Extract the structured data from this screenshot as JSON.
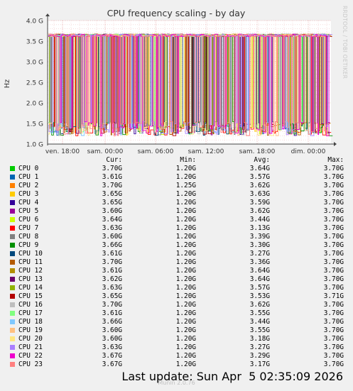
{
  "chart_data": {
    "type": "line",
    "title": "CPU frequency scaling - by day",
    "ylabel": "Hz",
    "watermark": "RRDTOOL / TOBI OETIKER",
    "ylim": [
      1.0,
      4.0
    ],
    "y_ticks": [
      "1.0 G",
      "1.5 G",
      "2.0 G",
      "2.5 G",
      "3.0 G",
      "3.5 G",
      "4.0 G"
    ],
    "x_ticks": [
      "ven. 18:00",
      "sam. 00:00",
      "sam. 06:00",
      "sam. 12:00",
      "sam. 18:00",
      "dim. 00:00"
    ],
    "grid": true,
    "legend_headers": {
      "cur": "Cur:",
      "min": "Min:",
      "avg": "Avg:",
      "max": "Max:"
    },
    "series": [
      {
        "name": "CPU 0",
        "color": "#00cc00",
        "cur": "3.70G",
        "min": "1.20G",
        "avg": "3.64G",
        "max": "3.70G"
      },
      {
        "name": "CPU 1",
        "color": "#0066b3",
        "cur": "3.61G",
        "min": "1.20G",
        "avg": "3.57G",
        "max": "3.70G"
      },
      {
        "name": "CPU 2",
        "color": "#ff8000",
        "cur": "3.70G",
        "min": "1.25G",
        "avg": "3.62G",
        "max": "3.70G"
      },
      {
        "name": "CPU 3",
        "color": "#ffcc00",
        "cur": "3.65G",
        "min": "1.20G",
        "avg": "3.63G",
        "max": "3.70G"
      },
      {
        "name": "CPU 4",
        "color": "#330099",
        "cur": "3.65G",
        "min": "1.20G",
        "avg": "3.59G",
        "max": "3.70G"
      },
      {
        "name": "CPU 5",
        "color": "#990099",
        "cur": "3.60G",
        "min": "1.20G",
        "avg": "3.62G",
        "max": "3.70G"
      },
      {
        "name": "CPU 6",
        "color": "#ccff00",
        "cur": "3.64G",
        "min": "1.20G",
        "avg": "3.44G",
        "max": "3.70G"
      },
      {
        "name": "CPU 7",
        "color": "#ff0000",
        "cur": "3.63G",
        "min": "1.20G",
        "avg": "3.13G",
        "max": "3.70G"
      },
      {
        "name": "CPU 8",
        "color": "#808080",
        "cur": "3.60G",
        "min": "1.20G",
        "avg": "3.39G",
        "max": "3.70G"
      },
      {
        "name": "CPU 9",
        "color": "#008f00",
        "cur": "3.66G",
        "min": "1.20G",
        "avg": "3.30G",
        "max": "3.70G"
      },
      {
        "name": "CPU 10",
        "color": "#00487d",
        "cur": "3.61G",
        "min": "1.20G",
        "avg": "3.27G",
        "max": "3.70G"
      },
      {
        "name": "CPU 11",
        "color": "#b35a00",
        "cur": "3.70G",
        "min": "1.20G",
        "avg": "3.36G",
        "max": "3.70G"
      },
      {
        "name": "CPU 12",
        "color": "#b38f00",
        "cur": "3.61G",
        "min": "1.20G",
        "avg": "3.64G",
        "max": "3.70G"
      },
      {
        "name": "CPU 13",
        "color": "#6b006b",
        "cur": "3.62G",
        "min": "1.20G",
        "avg": "3.64G",
        "max": "3.70G"
      },
      {
        "name": "CPU 14",
        "color": "#8fb300",
        "cur": "3.63G",
        "min": "1.20G",
        "avg": "3.57G",
        "max": "3.70G"
      },
      {
        "name": "CPU 15",
        "color": "#b30000",
        "cur": "3.65G",
        "min": "1.20G",
        "avg": "3.53G",
        "max": "3.71G"
      },
      {
        "name": "CPU 16",
        "color": "#bebebe",
        "cur": "3.70G",
        "min": "1.20G",
        "avg": "3.62G",
        "max": "3.70G"
      },
      {
        "name": "CPU 17",
        "color": "#80ff80",
        "cur": "3.61G",
        "min": "1.20G",
        "avg": "3.55G",
        "max": "3.70G"
      },
      {
        "name": "CPU 18",
        "color": "#80c9ff",
        "cur": "3.66G",
        "min": "1.20G",
        "avg": "3.44G",
        "max": "3.70G"
      },
      {
        "name": "CPU 19",
        "color": "#ffc080",
        "cur": "3.60G",
        "min": "1.20G",
        "avg": "3.55G",
        "max": "3.70G"
      },
      {
        "name": "CPU 20",
        "color": "#ffe680",
        "cur": "3.60G",
        "min": "1.20G",
        "avg": "3.18G",
        "max": "3.70G"
      },
      {
        "name": "CPU 21",
        "color": "#aa80ff",
        "cur": "3.63G",
        "min": "1.20G",
        "avg": "3.27G",
        "max": "3.70G"
      },
      {
        "name": "CPU 22",
        "color": "#ee00cc",
        "cur": "3.67G",
        "min": "1.20G",
        "avg": "3.29G",
        "max": "3.70G"
      },
      {
        "name": "CPU 23",
        "color": "#ff8080",
        "cur": "3.67G",
        "min": "1.20G",
        "avg": "3.17G",
        "max": "3.70G"
      }
    ]
  },
  "footer": {
    "last_update": "Last update: Sun Apr  5 02:35:09 2026",
    "munin_version": "Munin 2.0.76"
  }
}
